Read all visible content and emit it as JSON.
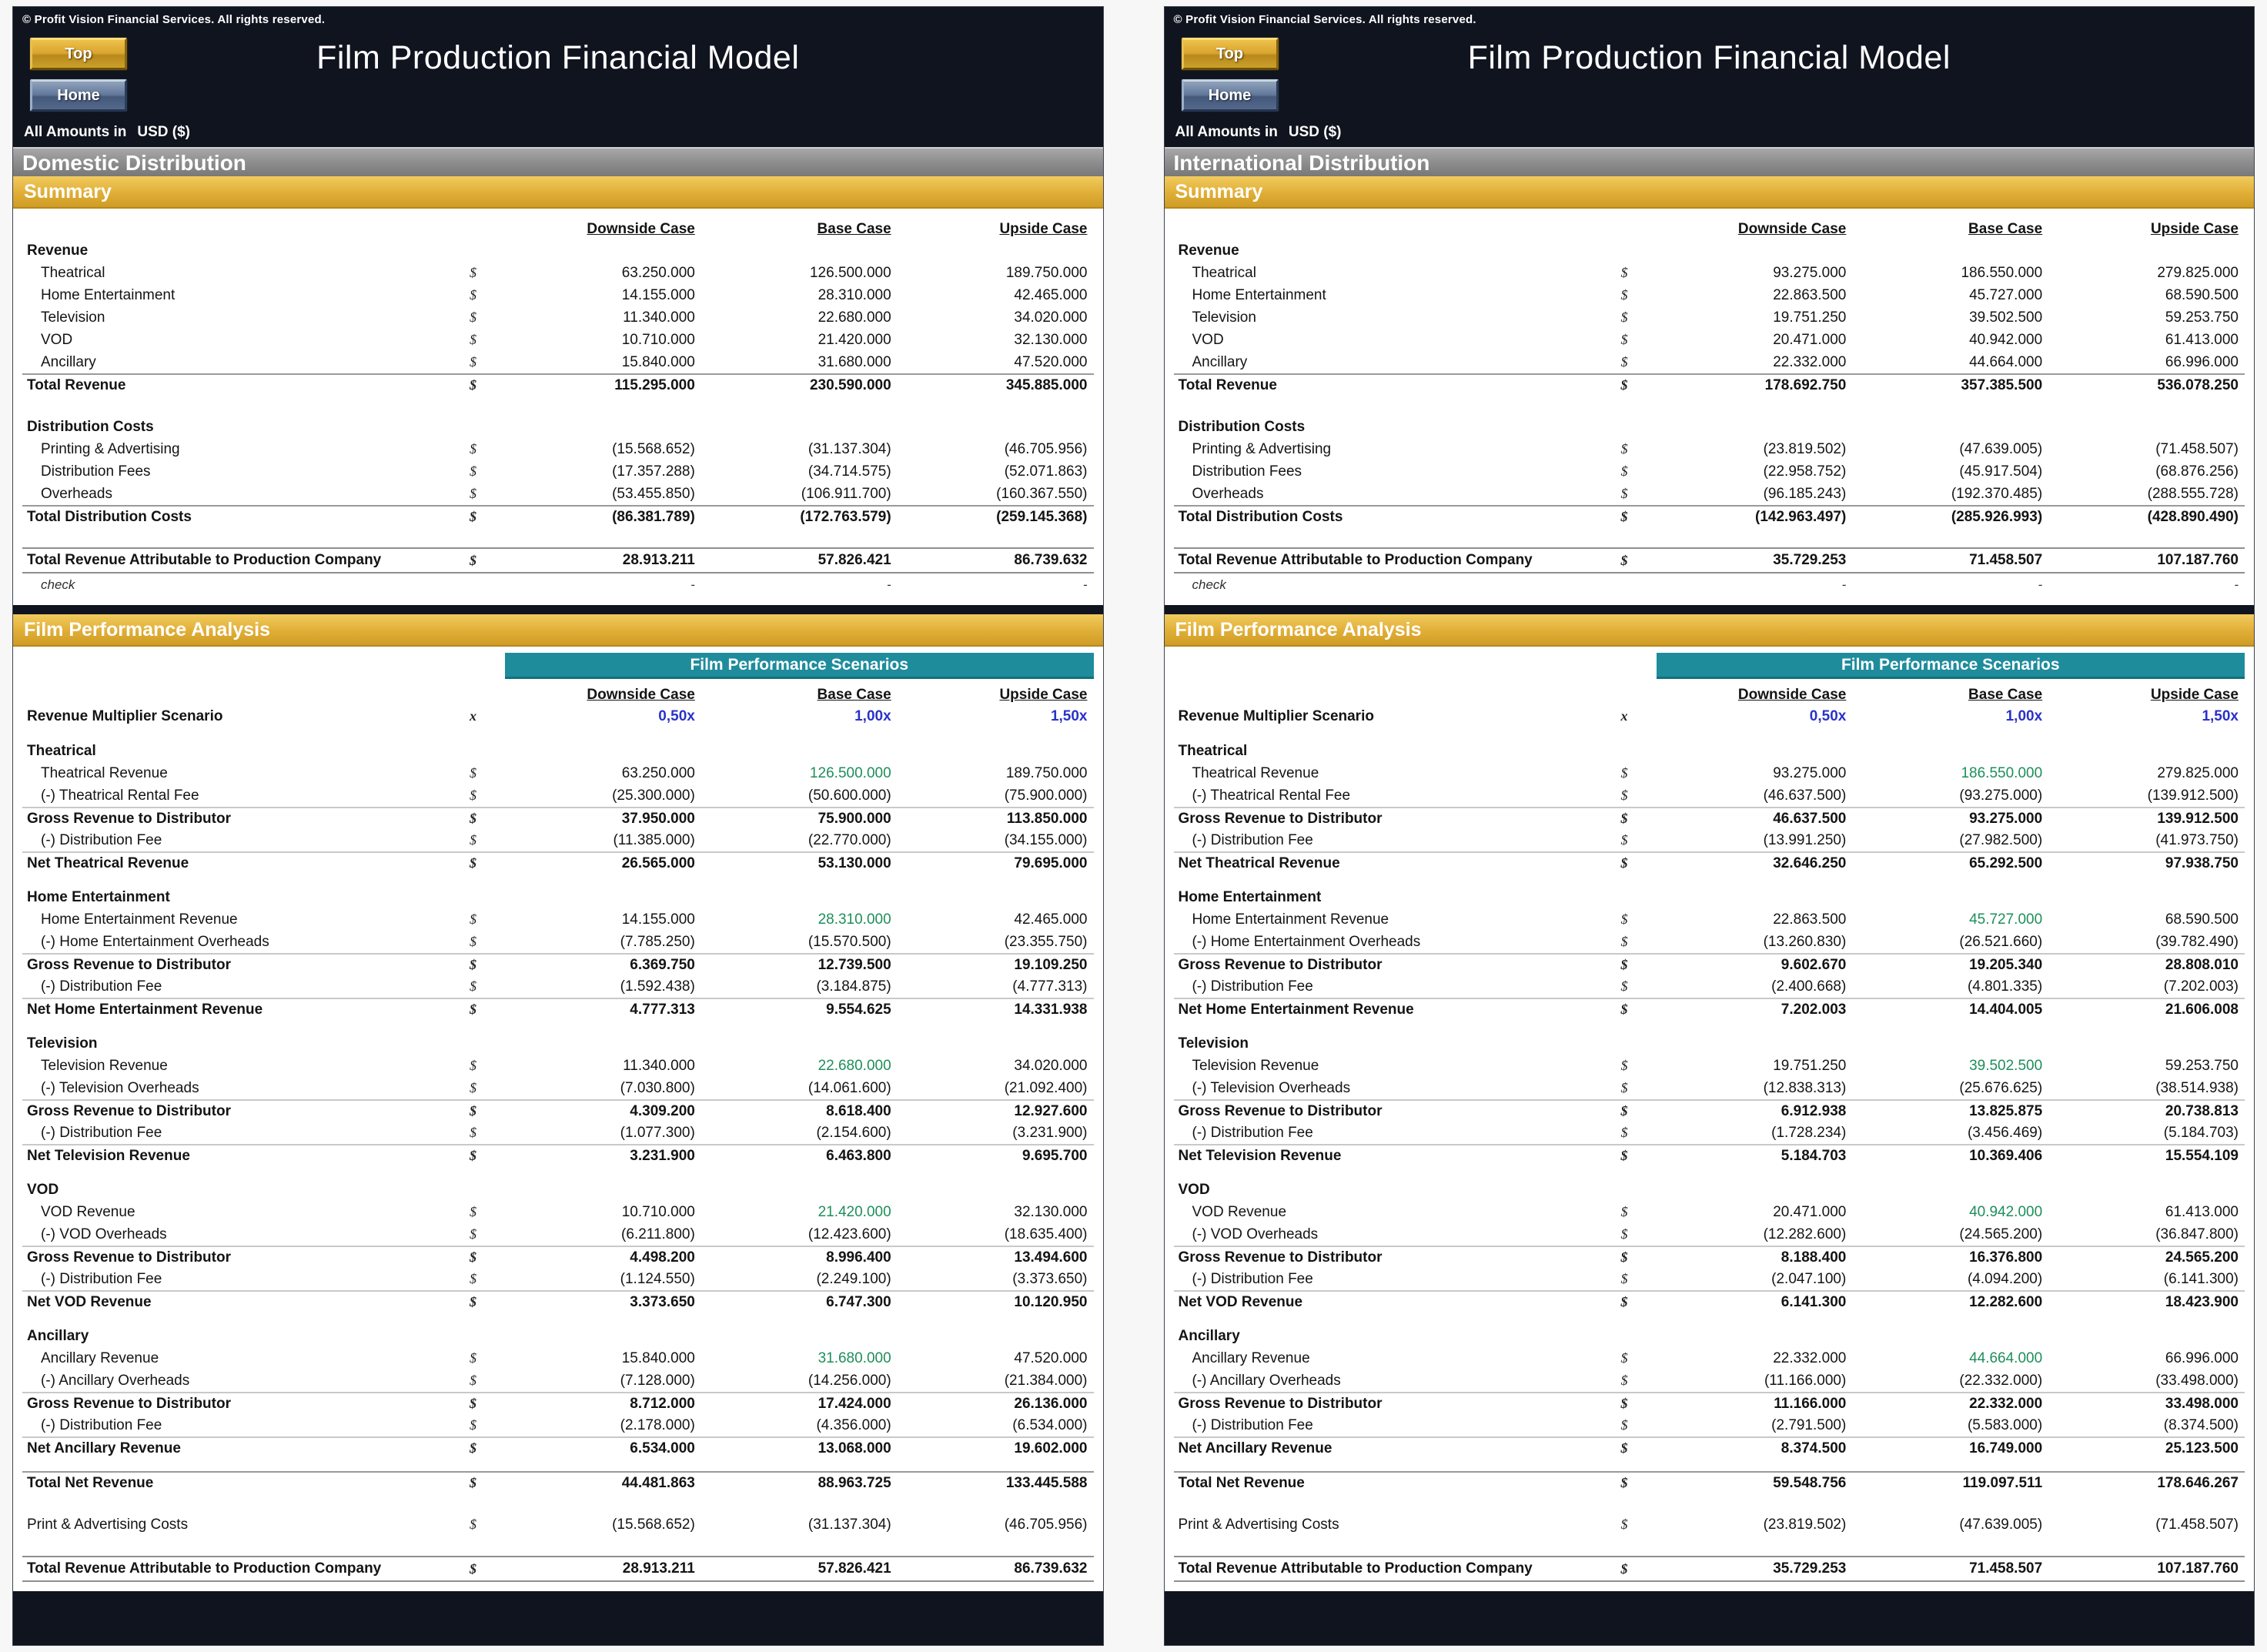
{
  "header": {
    "copyright": "© Profit Vision Financial Services. All rights reserved.",
    "top_button": "Top",
    "home_button": "Home",
    "title": "Film Production Financial Model",
    "amounts_label": "All Amounts in",
    "amounts_currency": "USD ($)"
  },
  "labels": {
    "summary": "Summary",
    "analysis": "Film Performance Analysis",
    "scenarios": "Film Performance Scenarios",
    "revenue": "Revenue",
    "distribution_costs": "Distribution Costs",
    "check": "check",
    "currency_symbol": "$",
    "multiplier_symbol": "x",
    "dash": "-"
  },
  "columns": [
    "Downside Case",
    "Base Case",
    "Upside Case"
  ],
  "panels": [
    {
      "region": "Domestic Distribution",
      "summary": {
        "revenue": [
          {
            "label": "Theatrical",
            "values": [
              "63.250.000",
              "126.500.000",
              "189.750.000"
            ]
          },
          {
            "label": "Home Entertainment",
            "values": [
              "14.155.000",
              "28.310.000",
              "42.465.000"
            ]
          },
          {
            "label": "Television",
            "values": [
              "11.340.000",
              "22.680.000",
              "34.020.000"
            ]
          },
          {
            "label": "VOD",
            "values": [
              "10.710.000",
              "21.420.000",
              "32.130.000"
            ]
          },
          {
            "label": "Ancillary",
            "values": [
              "15.840.000",
              "31.680.000",
              "47.520.000"
            ]
          }
        ],
        "total_revenue": {
          "label": "Total Revenue",
          "values": [
            "115.295.000",
            "230.590.000",
            "345.885.000"
          ]
        },
        "costs": [
          {
            "label": "Printing & Advertising",
            "values": [
              "(15.568.652)",
              "(31.137.304)",
              "(46.705.956)"
            ]
          },
          {
            "label": "Distribution Fees",
            "values": [
              "(17.357.288)",
              "(34.714.575)",
              "(52.071.863)"
            ]
          },
          {
            "label": "Overheads",
            "values": [
              "(53.455.850)",
              "(106.911.700)",
              "(160.367.550)"
            ]
          }
        ],
        "total_costs": {
          "label": "Total Distribution Costs",
          "values": [
            "(86.381.789)",
            "(172.763.579)",
            "(259.145.368)"
          ]
        },
        "trapc": {
          "label": "Total Revenue Attributable to Production Company",
          "values": [
            "28.913.211",
            "57.826.421",
            "86.739.632"
          ]
        },
        "check_values": [
          "-",
          "-",
          "-"
        ]
      },
      "analysis": {
        "multiplier": {
          "label": "Revenue Multiplier Scenario",
          "values": [
            "0,50x",
            "1,00x",
            "1,50x"
          ]
        },
        "groups": [
          {
            "name": "Theatrical",
            "rows": [
              {
                "label": "Theatrical Revenue",
                "values": [
                  "63.250.000",
                  "126.500.000",
                  "189.750.000"
                ]
              },
              {
                "label": "(-) Theatrical Rental Fee",
                "values": [
                  "(25.300.000)",
                  "(50.600.000)",
                  "(75.900.000)"
                ]
              },
              {
                "label": "Gross Revenue to Distributor",
                "values": [
                  "37.950.000",
                  "75.900.000",
                  "113.850.000"
                ]
              },
              {
                "label": "(-) Distribution Fee",
                "values": [
                  "(11.385.000)",
                  "(22.770.000)",
                  "(34.155.000)"
                ]
              },
              {
                "label": "Net Theatrical Revenue",
                "values": [
                  "26.565.000",
                  "53.130.000",
                  "79.695.000"
                ]
              }
            ]
          },
          {
            "name": "Home Entertainment",
            "rows": [
              {
                "label": "Home Entertainment Revenue",
                "values": [
                  "14.155.000",
                  "28.310.000",
                  "42.465.000"
                ]
              },
              {
                "label": "(-) Home Entertainment Overheads",
                "values": [
                  "(7.785.250)",
                  "(15.570.500)",
                  "(23.355.750)"
                ]
              },
              {
                "label": "Gross Revenue to Distributor",
                "values": [
                  "6.369.750",
                  "12.739.500",
                  "19.109.250"
                ]
              },
              {
                "label": "(-) Distribution Fee",
                "values": [
                  "(1.592.438)",
                  "(3.184.875)",
                  "(4.777.313)"
                ]
              },
              {
                "label": "Net Home Entertainment Revenue",
                "values": [
                  "4.777.313",
                  "9.554.625",
                  "14.331.938"
                ]
              }
            ]
          },
          {
            "name": "Television",
            "rows": [
              {
                "label": "Television Revenue",
                "values": [
                  "11.340.000",
                  "22.680.000",
                  "34.020.000"
                ]
              },
              {
                "label": "(-) Television Overheads",
                "values": [
                  "(7.030.800)",
                  "(14.061.600)",
                  "(21.092.400)"
                ]
              },
              {
                "label": "Gross Revenue to Distributor",
                "values": [
                  "4.309.200",
                  "8.618.400",
                  "12.927.600"
                ]
              },
              {
                "label": "(-) Distribution Fee",
                "values": [
                  "(1.077.300)",
                  "(2.154.600)",
                  "(3.231.900)"
                ]
              },
              {
                "label": "Net Television Revenue",
                "values": [
                  "3.231.900",
                  "6.463.800",
                  "9.695.700"
                ]
              }
            ]
          },
          {
            "name": "VOD",
            "rows": [
              {
                "label": "VOD Revenue",
                "values": [
                  "10.710.000",
                  "21.420.000",
                  "32.130.000"
                ]
              },
              {
                "label": "(-) VOD Overheads",
                "values": [
                  "(6.211.800)",
                  "(12.423.600)",
                  "(18.635.400)"
                ]
              },
              {
                "label": "Gross Revenue to Distributor",
                "values": [
                  "4.498.200",
                  "8.996.400",
                  "13.494.600"
                ]
              },
              {
                "label": "(-) Distribution Fee",
                "values": [
                  "(1.124.550)",
                  "(2.249.100)",
                  "(3.373.650)"
                ]
              },
              {
                "label": "Net VOD Revenue",
                "values": [
                  "3.373.650",
                  "6.747.300",
                  "10.120.950"
                ]
              }
            ]
          },
          {
            "name": "Ancillary",
            "rows": [
              {
                "label": "Ancillary Revenue",
                "values": [
                  "15.840.000",
                  "31.680.000",
                  "47.520.000"
                ]
              },
              {
                "label": "(-) Ancillary Overheads",
                "values": [
                  "(7.128.000)",
                  "(14.256.000)",
                  "(21.384.000)"
                ]
              },
              {
                "label": "Gross Revenue to Distributor",
                "values": [
                  "8.712.000",
                  "17.424.000",
                  "26.136.000"
                ]
              },
              {
                "label": "(-) Distribution Fee",
                "values": [
                  "(2.178.000)",
                  "(4.356.000)",
                  "(6.534.000)"
                ]
              },
              {
                "label": "Net Ancillary Revenue",
                "values": [
                  "6.534.000",
                  "13.068.000",
                  "19.602.000"
                ]
              }
            ]
          }
        ],
        "total_net": {
          "label": "Total Net Revenue",
          "values": [
            "44.481.863",
            "88.963.725",
            "133.445.588"
          ]
        },
        "pa_costs": {
          "label": "Print & Advertising Costs",
          "values": [
            "(15.568.652)",
            "(31.137.304)",
            "(46.705.956)"
          ]
        },
        "trapc": {
          "label": "Total Revenue Attributable to Production Company",
          "values": [
            "28.913.211",
            "57.826.421",
            "86.739.632"
          ]
        }
      }
    },
    {
      "region": "International Distribution",
      "summary": {
        "revenue": [
          {
            "label": "Theatrical",
            "values": [
              "93.275.000",
              "186.550.000",
              "279.825.000"
            ]
          },
          {
            "label": "Home Entertainment",
            "values": [
              "22.863.500",
              "45.727.000",
              "68.590.500"
            ]
          },
          {
            "label": "Television",
            "values": [
              "19.751.250",
              "39.502.500",
              "59.253.750"
            ]
          },
          {
            "label": "VOD",
            "values": [
              "20.471.000",
              "40.942.000",
              "61.413.000"
            ]
          },
          {
            "label": "Ancillary",
            "values": [
              "22.332.000",
              "44.664.000",
              "66.996.000"
            ]
          }
        ],
        "total_revenue": {
          "label": "Total Revenue",
          "values": [
            "178.692.750",
            "357.385.500",
            "536.078.250"
          ]
        },
        "costs": [
          {
            "label": "Printing & Advertising",
            "values": [
              "(23.819.502)",
              "(47.639.005)",
              "(71.458.507)"
            ]
          },
          {
            "label": "Distribution Fees",
            "values": [
              "(22.958.752)",
              "(45.917.504)",
              "(68.876.256)"
            ]
          },
          {
            "label": "Overheads",
            "values": [
              "(96.185.243)",
              "(192.370.485)",
              "(288.555.728)"
            ]
          }
        ],
        "total_costs": {
          "label": "Total Distribution Costs",
          "values": [
            "(142.963.497)",
            "(285.926.993)",
            "(428.890.490)"
          ]
        },
        "trapc": {
          "label": "Total Revenue Attributable to Production Company",
          "values": [
            "35.729.253",
            "71.458.507",
            "107.187.760"
          ]
        },
        "check_values": [
          "-",
          "-",
          "-"
        ]
      },
      "analysis": {
        "multiplier": {
          "label": "Revenue Multiplier Scenario",
          "values": [
            "0,50x",
            "1,00x",
            "1,50x"
          ]
        },
        "groups": [
          {
            "name": "Theatrical",
            "rows": [
              {
                "label": "Theatrical Revenue",
                "values": [
                  "93.275.000",
                  "186.550.000",
                  "279.825.000"
                ]
              },
              {
                "label": "(-) Theatrical Rental Fee",
                "values": [
                  "(46.637.500)",
                  "(93.275.000)",
                  "(139.912.500)"
                ]
              },
              {
                "label": "Gross Revenue to Distributor",
                "values": [
                  "46.637.500",
                  "93.275.000",
                  "139.912.500"
                ]
              },
              {
                "label": "(-) Distribution Fee",
                "values": [
                  "(13.991.250)",
                  "(27.982.500)",
                  "(41.973.750)"
                ]
              },
              {
                "label": "Net Theatrical Revenue",
                "values": [
                  "32.646.250",
                  "65.292.500",
                  "97.938.750"
                ]
              }
            ]
          },
          {
            "name": "Home Entertainment",
            "rows": [
              {
                "label": "Home Entertainment Revenue",
                "values": [
                  "22.863.500",
                  "45.727.000",
                  "68.590.500"
                ]
              },
              {
                "label": "(-) Home Entertainment Overheads",
                "values": [
                  "(13.260.830)",
                  "(26.521.660)",
                  "(39.782.490)"
                ]
              },
              {
                "label": "Gross Revenue to Distributor",
                "values": [
                  "9.602.670",
                  "19.205.340",
                  "28.808.010"
                ]
              },
              {
                "label": "(-) Distribution Fee",
                "values": [
                  "(2.400.668)",
                  "(4.801.335)",
                  "(7.202.003)"
                ]
              },
              {
                "label": "Net Home Entertainment Revenue",
                "values": [
                  "7.202.003",
                  "14.404.005",
                  "21.606.008"
                ]
              }
            ]
          },
          {
            "name": "Television",
            "rows": [
              {
                "label": "Television Revenue",
                "values": [
                  "19.751.250",
                  "39.502.500",
                  "59.253.750"
                ]
              },
              {
                "label": "(-) Television Overheads",
                "values": [
                  "(12.838.313)",
                  "(25.676.625)",
                  "(38.514.938)"
                ]
              },
              {
                "label": "Gross Revenue to Distributor",
                "values": [
                  "6.912.938",
                  "13.825.875",
                  "20.738.813"
                ]
              },
              {
                "label": "(-) Distribution Fee",
                "values": [
                  "(1.728.234)",
                  "(3.456.469)",
                  "(5.184.703)"
                ]
              },
              {
                "label": "Net Television Revenue",
                "values": [
                  "5.184.703",
                  "10.369.406",
                  "15.554.109"
                ]
              }
            ]
          },
          {
            "name": "VOD",
            "rows": [
              {
                "label": "VOD Revenue",
                "values": [
                  "20.471.000",
                  "40.942.000",
                  "61.413.000"
                ]
              },
              {
                "label": "(-) VOD Overheads",
                "values": [
                  "(12.282.600)",
                  "(24.565.200)",
                  "(36.847.800)"
                ]
              },
              {
                "label": "Gross Revenue to Distributor",
                "values": [
                  "8.188.400",
                  "16.376.800",
                  "24.565.200"
                ]
              },
              {
                "label": "(-) Distribution Fee",
                "values": [
                  "(2.047.100)",
                  "(4.094.200)",
                  "(6.141.300)"
                ]
              },
              {
                "label": "Net VOD Revenue",
                "values": [
                  "6.141.300",
                  "12.282.600",
                  "18.423.900"
                ]
              }
            ]
          },
          {
            "name": "Ancillary",
            "rows": [
              {
                "label": "Ancillary Revenue",
                "values": [
                  "22.332.000",
                  "44.664.000",
                  "66.996.000"
                ]
              },
              {
                "label": "(-) Ancillary Overheads",
                "values": [
                  "(11.166.000)",
                  "(22.332.000)",
                  "(33.498.000)"
                ]
              },
              {
                "label": "Gross Revenue to Distributor",
                "values": [
                  "11.166.000",
                  "22.332.000",
                  "33.498.000"
                ]
              },
              {
                "label": "(-) Distribution Fee",
                "values": [
                  "(2.791.500)",
                  "(5.583.000)",
                  "(8.374.500)"
                ]
              },
              {
                "label": "Net Ancillary Revenue",
                "values": [
                  "8.374.500",
                  "16.749.000",
                  "25.123.500"
                ]
              }
            ]
          }
        ],
        "total_net": {
          "label": "Total Net Revenue",
          "values": [
            "59.548.756",
            "119.097.511",
            "178.646.267"
          ]
        },
        "pa_costs": {
          "label": "Print & Advertising Costs",
          "values": [
            "(23.819.502)",
            "(47.639.005)",
            "(71.458.507)"
          ]
        },
        "trapc": {
          "label": "Total Revenue Attributable to Production Company",
          "values": [
            "35.729.253",
            "71.458.507",
            "107.187.760"
          ]
        }
      }
    }
  ]
}
